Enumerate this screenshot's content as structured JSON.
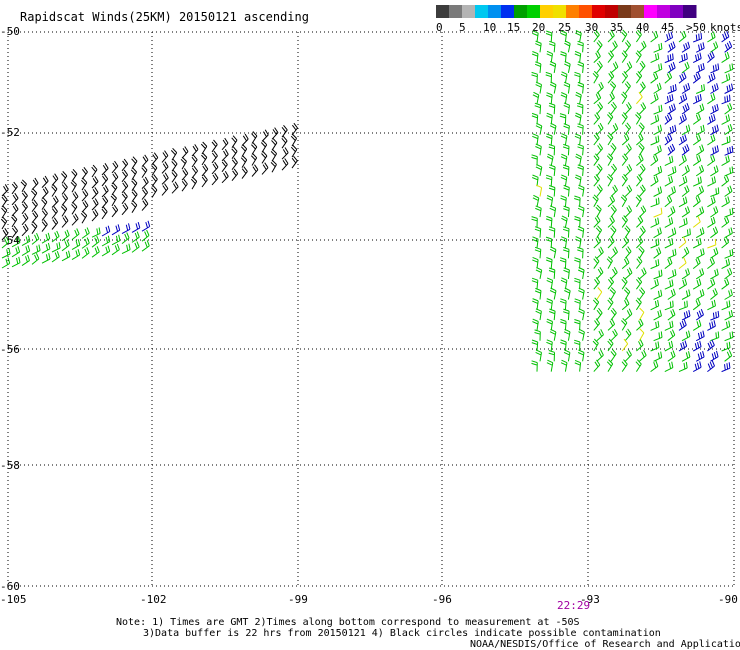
{
  "title": "Rapidscat Winds(25KM) 20150121 ascending",
  "legend": {
    "ticks": [
      "0",
      "5",
      "10",
      "15",
      "20",
      "25",
      "30",
      "35",
      "40",
      "45",
      ">50"
    ],
    "unit": "knots",
    "colors": [
      "#3c3c3c",
      "#7a7a7a",
      "#b4b4b4",
      "#00c8f0",
      "#0090f0",
      "#0030f0",
      "#00a000",
      "#00d000",
      "#ffd000",
      "#f0e000",
      "#ff8000",
      "#ff5000",
      "#e00000",
      "#c00000",
      "#7a3a1a",
      "#a05030",
      "#ff00ff",
      "#c000e0",
      "#8000c0",
      "#400080"
    ]
  },
  "axes": {
    "lat_labels": [
      "-50",
      "-52",
      "-54",
      "-56",
      "-58",
      "-60"
    ],
    "lon_labels": [
      "-105",
      "-102",
      "-99",
      "-96",
      "-93",
      "-90"
    ]
  },
  "time_label": "22:29",
  "notes": {
    "line1": "Note: 1) Times are GMT 2)Times along bottom correspond to measurement at -50S",
    "line2": "3)Data buffer is 22 hrs from 20150121 4) Black circles indicate possible contamination",
    "credit": "NOAA/NESDIS/Office of Research and Applications"
  },
  "colors": {
    "grid": "#000000",
    "time_label": "#a000a0",
    "contaminated": "#000000",
    "green": "#00c000",
    "blue": "#0000c0",
    "yellow": "#e0e000"
  }
}
